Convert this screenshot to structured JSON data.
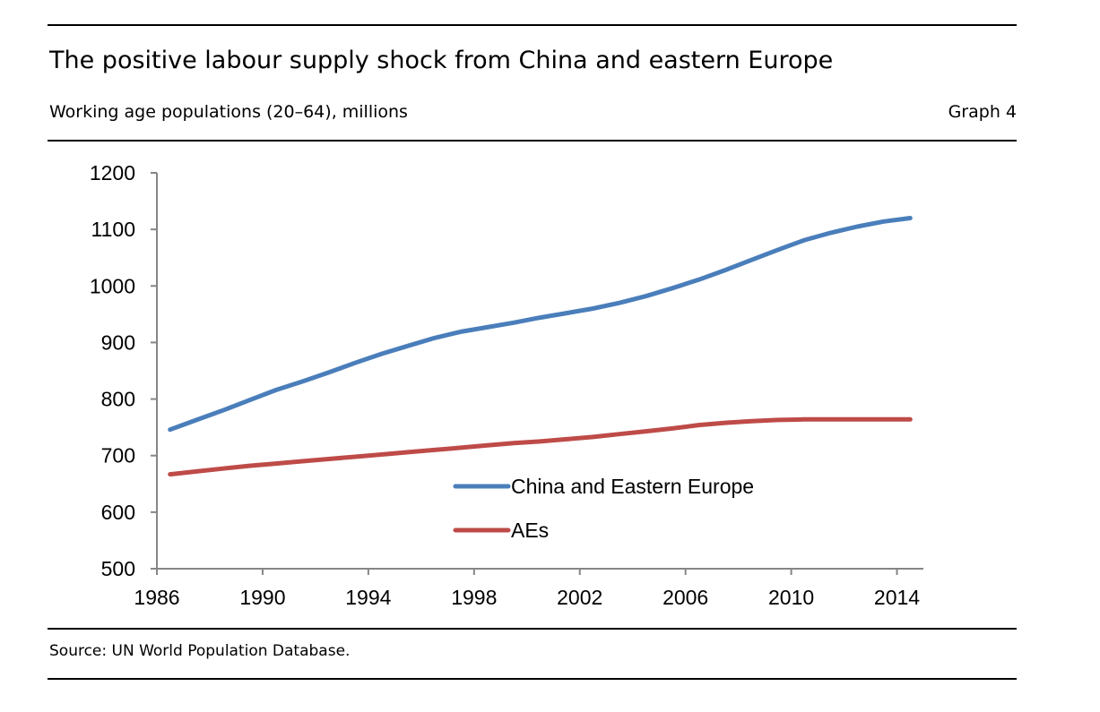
{
  "header": {
    "title": "The positive labour supply shock from China and eastern Europe",
    "subtitle": "Working age populations (20–64), millions",
    "graph_number": "Graph 4"
  },
  "footer": {
    "source": "Source: UN World Population Database."
  },
  "chart_data": {
    "type": "line",
    "title": "The positive labour supply shock from China and eastern Europe",
    "subtitle": "Working age populations (20–64), millions",
    "xlabel": "",
    "ylabel": "",
    "xlim": [
      1986,
      2015
    ],
    "ylim": [
      500,
      1200
    ],
    "x_ticks": [
      1986,
      1990,
      1994,
      1998,
      2002,
      2006,
      2010,
      2014
    ],
    "y_ticks": [
      500,
      600,
      700,
      800,
      900,
      1000,
      1100,
      1200
    ],
    "grid": false,
    "legend_position": "lower-center",
    "x": [
      1986.5,
      1987.5,
      1988.5,
      1989.5,
      1990.5,
      1991.5,
      1992.5,
      1993.5,
      1994.5,
      1995.5,
      1996.5,
      1997.5,
      1998.5,
      1999.5,
      2000.5,
      2001.5,
      2002.5,
      2003.5,
      2004.5,
      2005.5,
      2006.5,
      2007.5,
      2008.5,
      2009.5,
      2010.5,
      2011.5,
      2012.5,
      2013.5,
      2014.5
    ],
    "series": [
      {
        "name": "China and Eastern Europe",
        "color": "#4a7ebb",
        "values": [
          746,
          763,
          780,
          798,
          816,
          831,
          847,
          864,
          880,
          894,
          908,
          919,
          927,
          935,
          944,
          952,
          960,
          970,
          982,
          996,
          1011,
          1028,
          1046,
          1064,
          1081,
          1094,
          1105,
          1114,
          1120
        ]
      },
      {
        "name": "AEs",
        "color": "#be4b48",
        "values": [
          667,
          672,
          677,
          682,
          686,
          690,
          694,
          698,
          702,
          706,
          710,
          714,
          718,
          722,
          725,
          729,
          733,
          738,
          743,
          748,
          754,
          758,
          761,
          763,
          764,
          764,
          764,
          764,
          764
        ]
      }
    ]
  }
}
